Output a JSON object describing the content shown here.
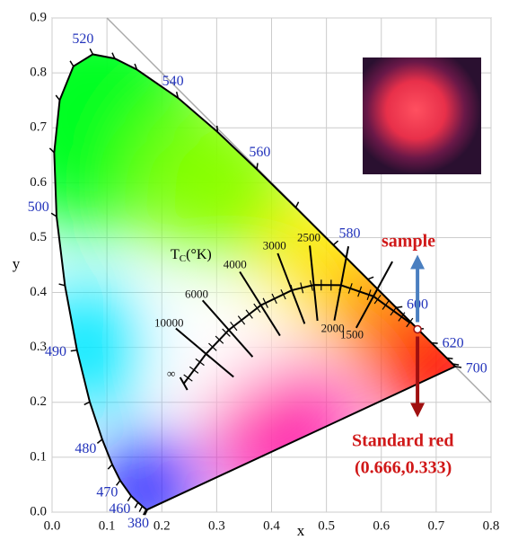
{
  "chart_data": {
    "type": "chromaticity",
    "x_label": "x",
    "y_label": "y",
    "xlim": [
      0,
      0.8
    ],
    "ylim": [
      0,
      0.9
    ],
    "xticks": [
      {
        "value": 0,
        "label": "0.0"
      },
      {
        "value": 0.1,
        "label": "0.1"
      },
      {
        "value": 0.2,
        "label": "0.2"
      },
      {
        "value": 0.3,
        "label": "0.3"
      },
      {
        "value": 0.4,
        "label": "0.4"
      },
      {
        "value": 0.5,
        "label": "0.5"
      },
      {
        "value": 0.6,
        "label": "0.6"
      },
      {
        "value": 0.7,
        "label": "0.7"
      },
      {
        "value": 0.8,
        "label": "0.8"
      }
    ],
    "yticks": [
      {
        "value": 0,
        "label": "0.0"
      },
      {
        "value": 0.1,
        "label": "0.1"
      },
      {
        "value": 0.2,
        "label": "0.2"
      },
      {
        "value": 0.3,
        "label": "0.3"
      },
      {
        "value": 0.4,
        "label": "0.4"
      },
      {
        "value": 0.5,
        "label": "0.5"
      },
      {
        "value": 0.6,
        "label": "0.6"
      },
      {
        "value": 0.7,
        "label": "0.7"
      },
      {
        "value": 0.8,
        "label": "0.8"
      },
      {
        "value": 0.9,
        "label": "0.9"
      }
    ],
    "grid": true,
    "diagonal": {
      "x": [
        0.1,
        0.8
      ],
      "y": [
        0.9,
        0.2
      ]
    },
    "locus": {
      "x": [
        0.1741,
        0.1714,
        0.1644,
        0.1566,
        0.144,
        0.1241,
        0.1096,
        0.0913,
        0.0687,
        0.0454,
        0.0235,
        0.0082,
        0.0039,
        0.0139,
        0.0389,
        0.0743,
        0.1142,
        0.1547,
        0.2296,
        0.3016,
        0.3731,
        0.4441,
        0.5125,
        0.5752,
        0.627,
        0.6658,
        0.6915,
        0.719,
        0.73,
        0.7347
      ],
      "y": [
        0.005,
        0.0051,
        0.0109,
        0.0177,
        0.0297,
        0.0578,
        0.0868,
        0.1327,
        0.2007,
        0.295,
        0.4127,
        0.5384,
        0.6548,
        0.7502,
        0.812,
        0.8338,
        0.8262,
        0.8059,
        0.7543,
        0.6923,
        0.6245,
        0.5547,
        0.4866,
        0.4242,
        0.3725,
        0.334,
        0.3083,
        0.2809,
        0.27,
        0.2653
      ]
    },
    "wavelength_labels": [
      {
        "text": "380",
        "x": 0.1741,
        "y": 0.005
      },
      {
        "text": "460",
        "x": 0.144,
        "y": 0.0297
      },
      {
        "text": "470",
        "x": 0.1241,
        "y": 0.0578
      },
      {
        "text": "480",
        "x": 0.0913,
        "y": 0.1327
      },
      {
        "text": "490",
        "x": 0.0454,
        "y": 0.295
      },
      {
        "text": "500",
        "x": 0.0082,
        "y": 0.5384
      },
      {
        "text": "520",
        "x": 0.0743,
        "y": 0.8338
      },
      {
        "text": "540",
        "x": 0.2296,
        "y": 0.7543
      },
      {
        "text": "560",
        "x": 0.3731,
        "y": 0.6245
      },
      {
        "text": "580",
        "x": 0.5125,
        "y": 0.4866
      },
      {
        "text": "600",
        "x": 0.627,
        "y": 0.3725
      },
      {
        "text": "620",
        "x": 0.6915,
        "y": 0.3083
      },
      {
        "text": "700",
        "x": 0.7347,
        "y": 0.2653
      }
    ],
    "planck": {
      "x": [
        0.24,
        0.2807,
        0.3221,
        0.3805,
        0.4369,
        0.477,
        0.5266,
        0.5857,
        0.6528
      ],
      "y": [
        0.234,
        0.2883,
        0.3318,
        0.3768,
        0.4041,
        0.4137,
        0.4133,
        0.3931,
        0.3444
      ]
    },
    "planck_title": {
      "t": "T",
      "sub": "C",
      "rest": "(°K)"
    },
    "isotherms": [
      {
        "text": "∞",
        "x": 0.24,
        "y": 0.234
      },
      {
        "text": "10000",
        "x": 0.2807,
        "y": 0.2883
      },
      {
        "text": "6000",
        "x": 0.3221,
        "y": 0.3318
      },
      {
        "text": "4000",
        "x": 0.3805,
        "y": 0.3768
      },
      {
        "text": "3000",
        "x": 0.4369,
        "y": 0.4041
      },
      {
        "text": "2500",
        "x": 0.477,
        "y": 0.4137
      },
      {
        "text": "2000",
        "x": 0.5266,
        "y": 0.4133
      },
      {
        "text": "1500",
        "x": 0.5857,
        "y": 0.3931
      }
    ],
    "sample": {
      "x": 0.666,
      "y": 0.333,
      "label": "sample",
      "annotation": [
        "Standard red",
        "(0.666,0.333)"
      ]
    }
  }
}
